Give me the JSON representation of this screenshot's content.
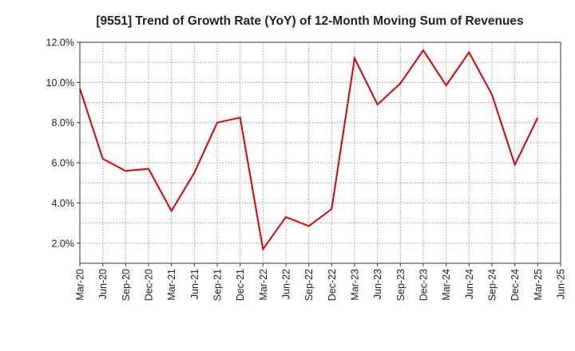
{
  "chart_data": {
    "type": "line",
    "title": "[9551]  Trend of Growth Rate (YoY) of 12-Month Moving Sum of Revenues",
    "xlabel": "",
    "ylabel": "",
    "x_tick_labels": [
      "Mar-20",
      "Jun-20",
      "Sep-20",
      "Dec-20",
      "Mar-21",
      "Jun-21",
      "Sep-21",
      "Dec-21",
      "Mar-22",
      "Jun-22",
      "Sep-22",
      "Dec-22",
      "Mar-23",
      "Jun-23",
      "Sep-23",
      "Dec-23",
      "Mar-24",
      "Jun-24",
      "Sep-24",
      "Dec-24",
      "Mar-25",
      "Jun-25"
    ],
    "y_tick_labels": [
      "2.0%",
      "4.0%",
      "6.0%",
      "8.0%",
      "10.0%",
      "12.0%"
    ],
    "ylim": [
      1.0,
      12.0
    ],
    "grid": true,
    "series": [
      {
        "color": "#dd0000",
        "values": [
          9.7,
          6.2,
          5.6,
          5.7,
          3.6,
          5.5,
          8.0,
          8.25,
          1.7,
          3.3,
          2.85,
          3.7,
          11.2,
          8.9,
          9.95,
          11.6,
          9.85,
          11.5,
          9.4,
          5.9,
          8.25
        ]
      }
    ]
  }
}
